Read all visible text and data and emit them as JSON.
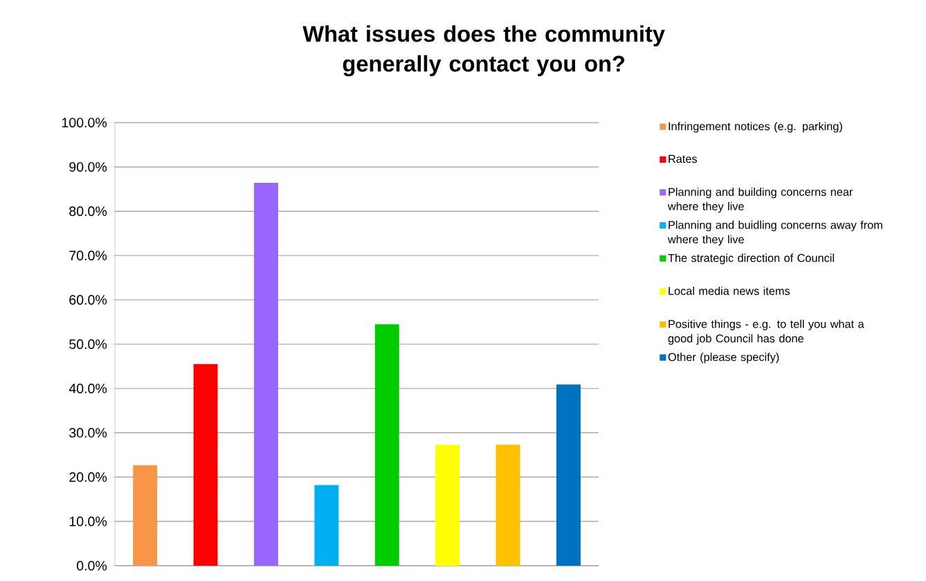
{
  "chart_data": {
    "type": "bar",
    "title": "What issues does the community generally contact you on?",
    "categories": [
      null,
      null,
      null,
      null,
      null,
      null,
      null,
      null
    ],
    "series": [
      {
        "name": "Infringement notices (e.g. parking)",
        "color": "#f79646",
        "values": [
          22.7,
          null,
          null,
          null,
          null,
          null,
          null,
          null
        ]
      },
      {
        "name": "Rates",
        "color": "#ff0000",
        "values": [
          null,
          45.5,
          null,
          null,
          null,
          null,
          null,
          null
        ]
      },
      {
        "name": "Planning and building concerns near where they live",
        "color": "#9966ff",
        "values": [
          null,
          null,
          86.4,
          null,
          null,
          null,
          null,
          null
        ]
      },
      {
        "name": "Planning and buidling concerns away from where they live",
        "color": "#00b0f0",
        "values": [
          null,
          null,
          null,
          18.2,
          null,
          null,
          null,
          null
        ]
      },
      {
        "name": "The strategic direction of Council",
        "color": "#00cc00",
        "values": [
          null,
          null,
          null,
          null,
          54.5,
          null,
          null,
          null
        ]
      },
      {
        "name": "Local media news items",
        "color": "#ffff00",
        "values": [
          null,
          null,
          null,
          null,
          null,
          27.3,
          null,
          null
        ]
      },
      {
        "name": "Positive things - e.g. to tell you what a good job Council has done",
        "color": "#ffc000",
        "values": [
          null,
          null,
          null,
          null,
          null,
          null,
          27.3,
          null
        ]
      },
      {
        "name": "Other (please specify)",
        "color": "#0070c0",
        "values": [
          null,
          null,
          null,
          null,
          null,
          null,
          null,
          40.9
        ]
      }
    ],
    "ylim": [
      0,
      100
    ],
    "yticks": [
      {
        "value": 0,
        "label": "0.0%"
      },
      {
        "value": 10,
        "label": "10.0%"
      },
      {
        "value": 20,
        "label": "20.0%"
      },
      {
        "value": 30,
        "label": "30.0%"
      },
      {
        "value": 40,
        "label": "40.0%"
      },
      {
        "value": 50,
        "label": "50.0%"
      },
      {
        "value": 60,
        "label": "60.0%"
      },
      {
        "value": 70,
        "label": "70.0%"
      },
      {
        "value": 80,
        "label": "80.0%"
      },
      {
        "value": 90,
        "label": "90.0%"
      },
      {
        "value": 100,
        "label": "100.0%"
      }
    ],
    "grid": "y",
    "legend": "right"
  }
}
